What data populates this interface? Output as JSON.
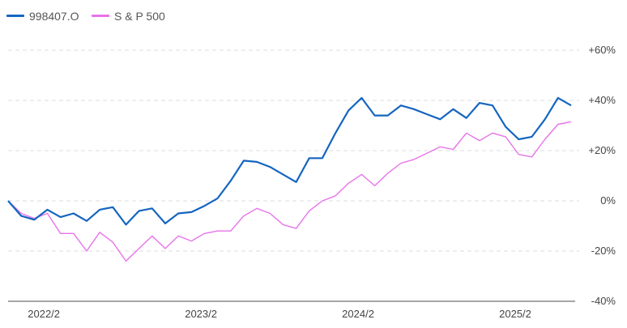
{
  "chart_data": {
    "type": "line",
    "title": "",
    "xlabel": "",
    "ylabel": "",
    "ylim": [
      -40,
      60
    ],
    "y_ticks": [
      60,
      40,
      20,
      0,
      -20,
      -40
    ],
    "y_tick_labels": [
      "+60%",
      "+40%",
      "+20%",
      "0%",
      "-20%",
      "-40%"
    ],
    "x_ticks": [
      {
        "label": "2022/2",
        "index": 1
      },
      {
        "label": "2023/2",
        "index": 13
      },
      {
        "label": "2024/2",
        "index": 25
      },
      {
        "label": "2025/2",
        "index": 37
      }
    ],
    "grid": true,
    "legend_position": "top-left",
    "series": [
      {
        "name": "998407.O",
        "color": "#1565c0",
        "values": [
          0,
          -6,
          -7.5,
          -3.5,
          -6.5,
          -5,
          -8,
          -3.5,
          -2.5,
          -9.5,
          -4,
          -3,
          -9,
          -5,
          -4.5,
          -2,
          1,
          8,
          16,
          15.5,
          13.5,
          10.5,
          7.5,
          17,
          17,
          27,
          36,
          41,
          34,
          34,
          38,
          36.5,
          34.5,
          32.5,
          36.5,
          33,
          39,
          38,
          29.5,
          24.5,
          25.5,
          32.5,
          41,
          38
        ]
      },
      {
        "name": "S & P 500",
        "color": "#e773e9",
        "values": [
          0,
          -5,
          -7,
          -5,
          -13,
          -13,
          -20,
          -12.5,
          -16.5,
          -24,
          -19,
          -14,
          -19,
          -14,
          -16,
          -13,
          -12,
          -12,
          -6,
          -3,
          -5,
          -9.5,
          -11,
          -4,
          0,
          2,
          7,
          10.5,
          6,
          11,
          15,
          16.5,
          19,
          21.5,
          20.5,
          27,
          24,
          27,
          25.5,
          18.5,
          17.5,
          24.5,
          30.5,
          31.5
        ]
      }
    ]
  }
}
